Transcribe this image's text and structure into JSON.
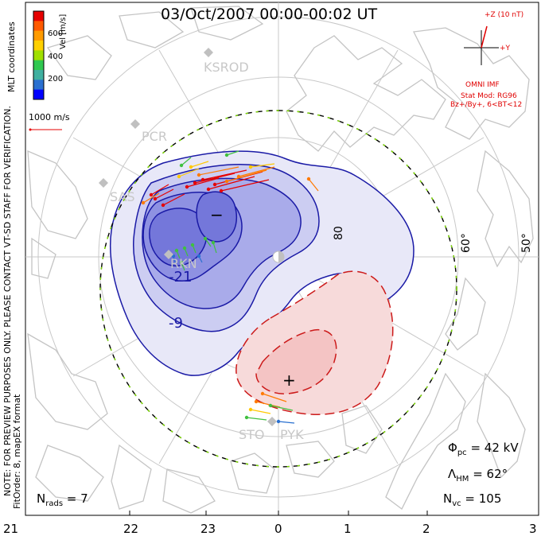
{
  "title": "03/Oct/2007 00:00-00:02 UT",
  "colorbar": {
    "label": "Vel [m/s]",
    "ticks": [
      "600",
      "400",
      "200"
    ],
    "colors": [
      "#e60000",
      "#ff5a00",
      "#ff9b00",
      "#ffd000",
      "#a0e000",
      "#30c850",
      "#40b0a0",
      "#2a70d0",
      "#0000ff"
    ]
  },
  "coord_label": "MLT coordinates",
  "ref_vector": "1000 m/s",
  "side_note": "NOTE: FOR PREVIEW PURPOSES ONLY. PLEASE CONTACT VT-SD STAFF FOR VERIFICATION.",
  "fit_info": "FitOrder: 8, mapEX format",
  "imf": {
    "z_label": "+Z (10 nT)",
    "y_label": "+Y",
    "source": "OMNI IMF",
    "model": "Stat Mod: RG96",
    "condition": "Bz+/By+, 6<BT<12"
  },
  "stations": [
    "KSROD",
    "PCR",
    "SAS",
    "RKN",
    "STO",
    "PYK"
  ],
  "latitudes": [
    "80",
    "60°",
    "50°"
  ],
  "contour_labels": [
    "-21",
    "-9"
  ],
  "markers": {
    "min": "−",
    "max": "+"
  },
  "mlt_axis": [
    "21",
    "22",
    "23",
    "0",
    "1",
    "2",
    "3"
  ],
  "stats": {
    "phi_pc": "42 kV",
    "lambda_hm": "62°",
    "n_rads": "7",
    "n_vc": "105"
  },
  "colors": {
    "negative": "#1a1aa6",
    "positive": "#cc1a1a",
    "boundary": "#000000",
    "land": "#c4c4c4"
  }
}
